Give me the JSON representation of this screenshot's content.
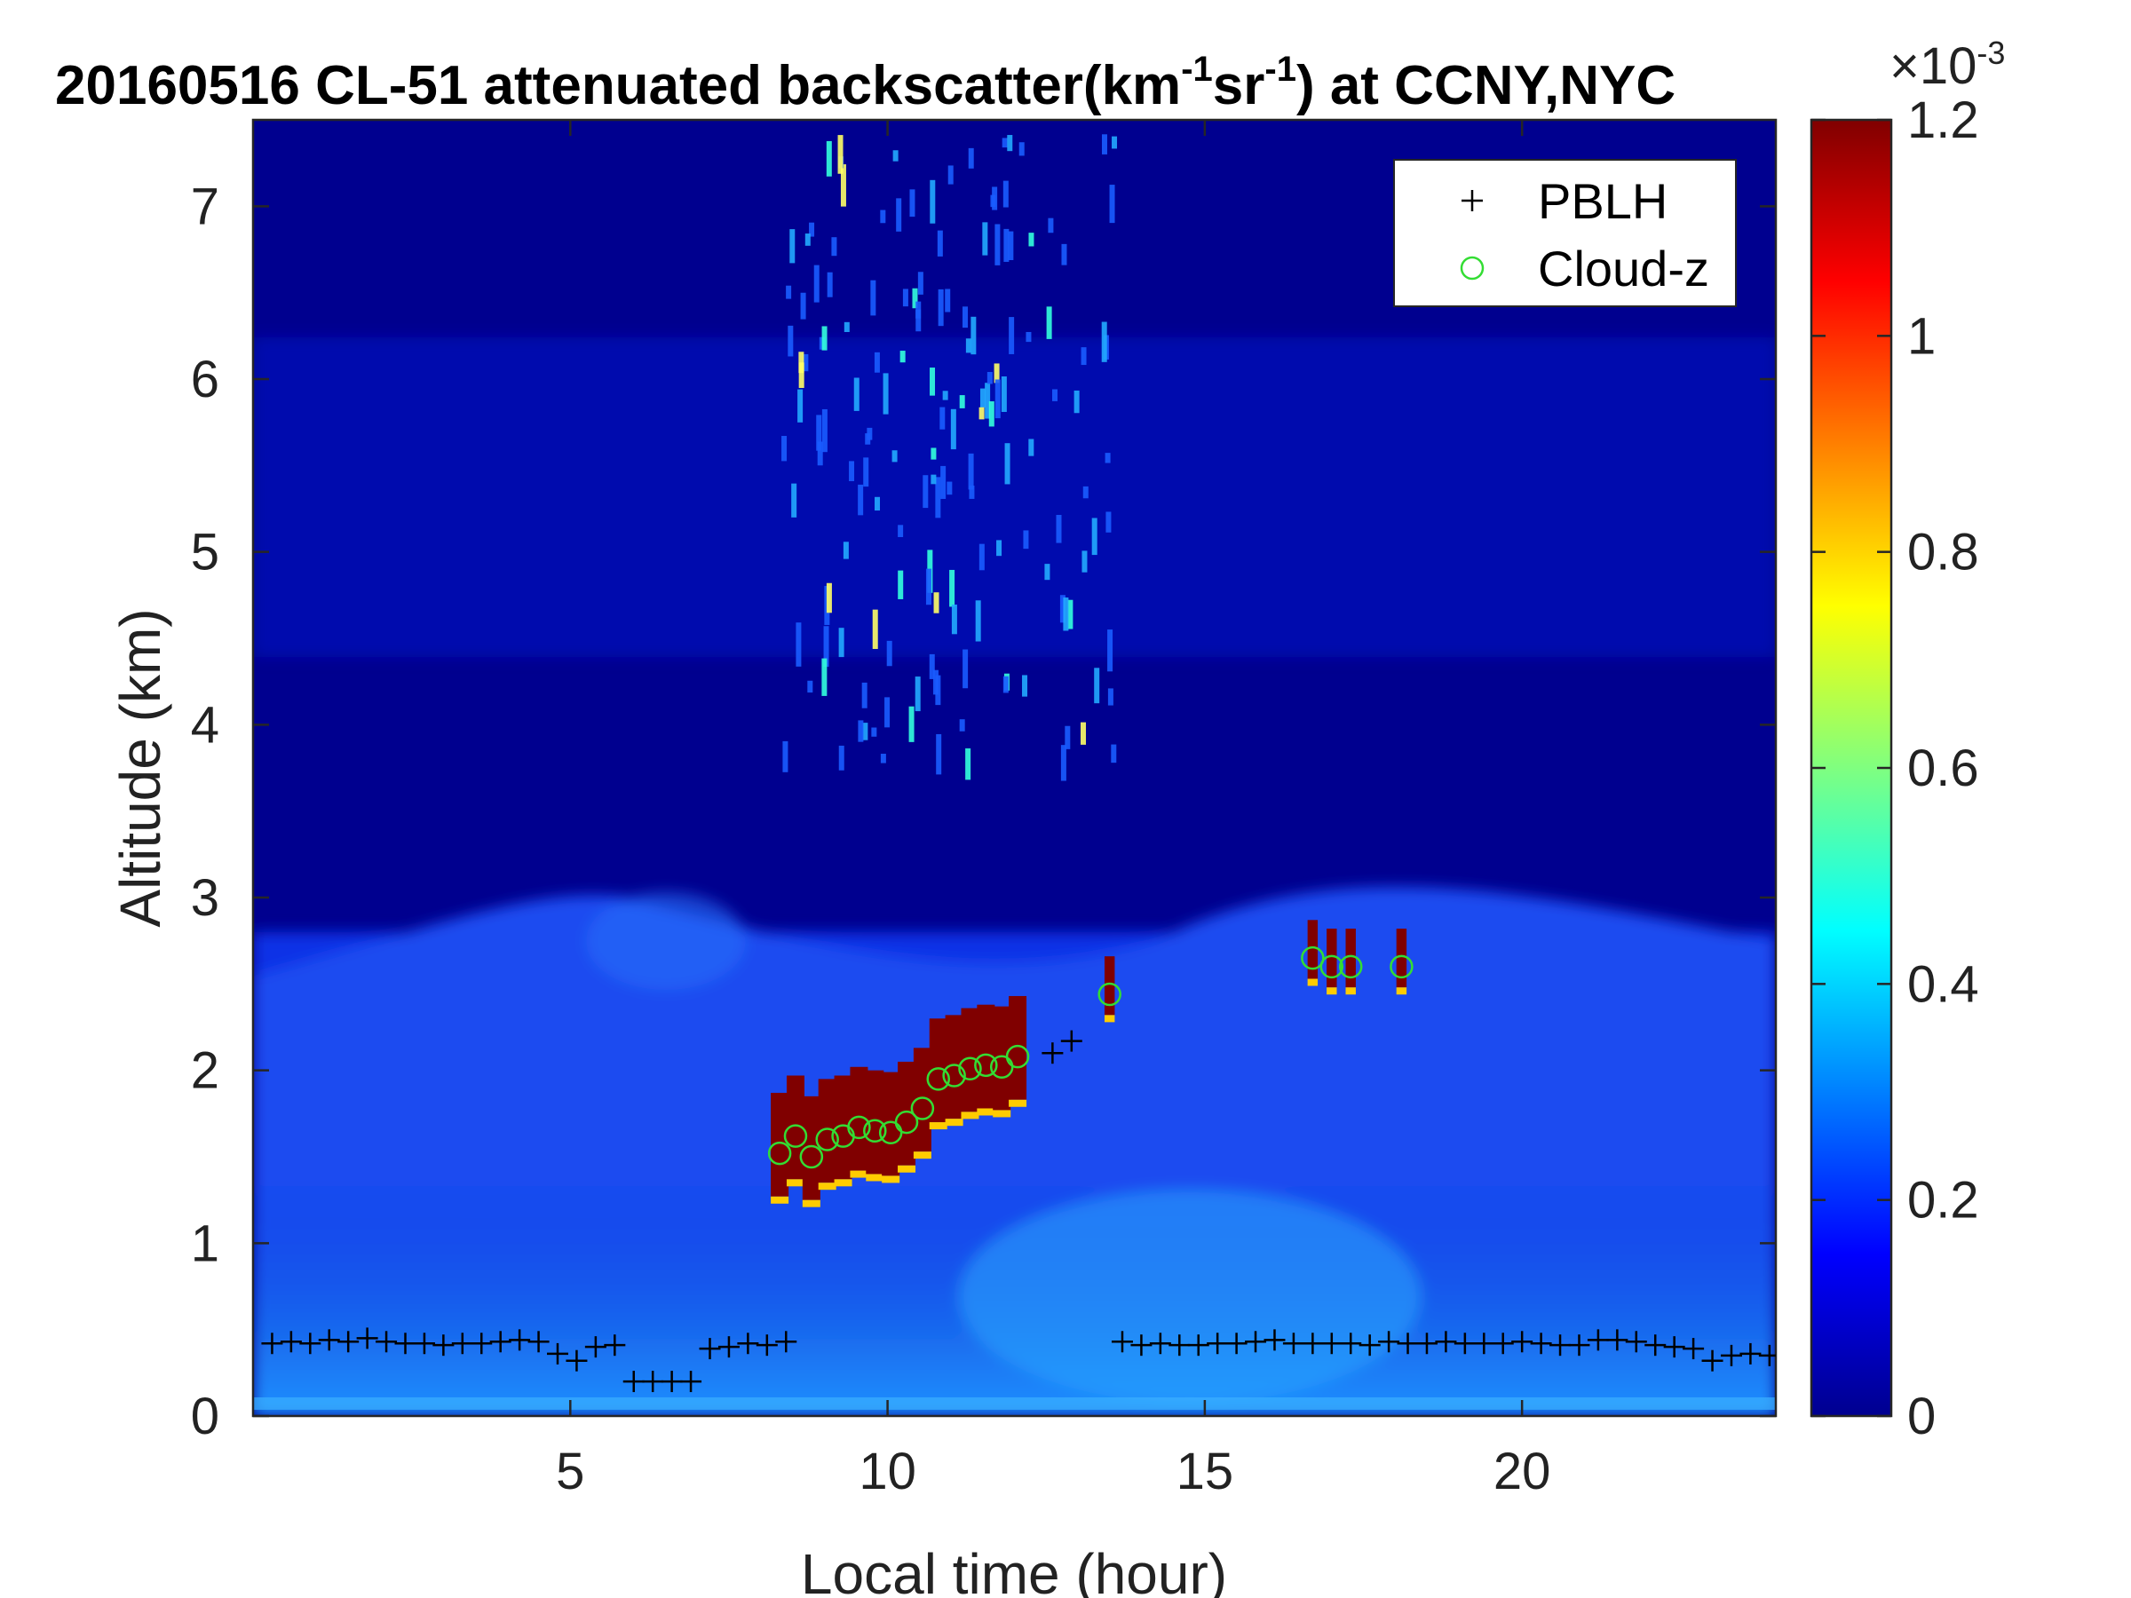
{
  "chart_data": {
    "type": "heatmap",
    "title": {
      "main": "20160516  CL-51 attenuated backscatter(km",
      "exp1": "-1",
      "mid": "sr",
      "exp2": "-1",
      "end": ") at CCNY,NYC"
    },
    "xlabel": "Local time (hour)",
    "ylabel": "Altitude (km)",
    "xlim": [
      0,
      24
    ],
    "ylim": [
      0,
      7.5
    ],
    "xticks": [
      5,
      10,
      15,
      20
    ],
    "yticks": [
      0,
      1,
      2,
      3,
      4,
      5,
      6,
      7
    ],
    "colorbar": {
      "range": [
        0,
        0.0012
      ],
      "ticks": [
        0,
        0.2,
        0.4,
        0.6,
        0.8,
        1,
        1.2
      ],
      "exponent_base": "×10",
      "exponent": "-3",
      "colormap": "jet"
    },
    "legend": {
      "position": "top-right",
      "entries": [
        {
          "label": "PBLH",
          "marker": "+",
          "color": "#000000"
        },
        {
          "label": "Cloud-z",
          "marker": "o",
          "color": "#33dd33"
        }
      ]
    },
    "series": [
      {
        "name": "PBLH",
        "x": [
          0.3,
          0.6,
          0.9,
          1.2,
          1.5,
          1.8,
          2.1,
          2.4,
          2.7,
          3.0,
          3.3,
          3.6,
          3.9,
          4.2,
          4.5,
          4.8,
          5.1,
          5.4,
          5.7,
          6.0,
          6.3,
          6.6,
          6.9,
          7.2,
          7.5,
          7.8,
          8.1,
          8.4,
          12.6,
          12.9,
          13.7,
          14.0,
          14.3,
          14.6,
          14.9,
          15.2,
          15.5,
          15.8,
          16.1,
          16.4,
          16.7,
          17.0,
          17.3,
          17.6,
          17.9,
          18.2,
          18.5,
          18.8,
          19.1,
          19.4,
          19.7,
          20.0,
          20.3,
          20.6,
          20.9,
          21.2,
          21.5,
          21.8,
          22.1,
          22.4,
          22.7,
          23.0,
          23.3,
          23.6,
          23.9
        ],
        "y": [
          0.42,
          0.43,
          0.42,
          0.44,
          0.43,
          0.45,
          0.43,
          0.42,
          0.42,
          0.41,
          0.42,
          0.42,
          0.43,
          0.44,
          0.43,
          0.36,
          0.32,
          0.4,
          0.41,
          0.2,
          0.2,
          0.2,
          0.2,
          0.39,
          0.4,
          0.42,
          0.41,
          0.43,
          2.1,
          2.17,
          0.43,
          0.41,
          0.42,
          0.41,
          0.41,
          0.42,
          0.42,
          0.43,
          0.44,
          0.42,
          0.42,
          0.42,
          0.42,
          0.41,
          0.43,
          0.42,
          0.42,
          0.43,
          0.42,
          0.42,
          0.42,
          0.43,
          0.42,
          0.41,
          0.41,
          0.44,
          0.44,
          0.43,
          0.41,
          0.4,
          0.39,
          0.32,
          0.35,
          0.36,
          0.35
        ]
      },
      {
        "name": "Cloud-z",
        "x": [
          8.3,
          8.55,
          8.8,
          9.05,
          9.3,
          9.55,
          9.8,
          10.05,
          10.3,
          10.55,
          10.8,
          11.05,
          11.3,
          11.55,
          11.8,
          12.05,
          13.5,
          16.7,
          17.0,
          17.3,
          18.1
        ],
        "y": [
          1.52,
          1.62,
          1.5,
          1.6,
          1.62,
          1.67,
          1.65,
          1.64,
          1.7,
          1.78,
          1.95,
          1.97,
          2.01,
          2.03,
          2.02,
          2.08,
          2.44,
          2.65,
          2.6,
          2.6,
          2.6
        ]
      }
    ]
  }
}
